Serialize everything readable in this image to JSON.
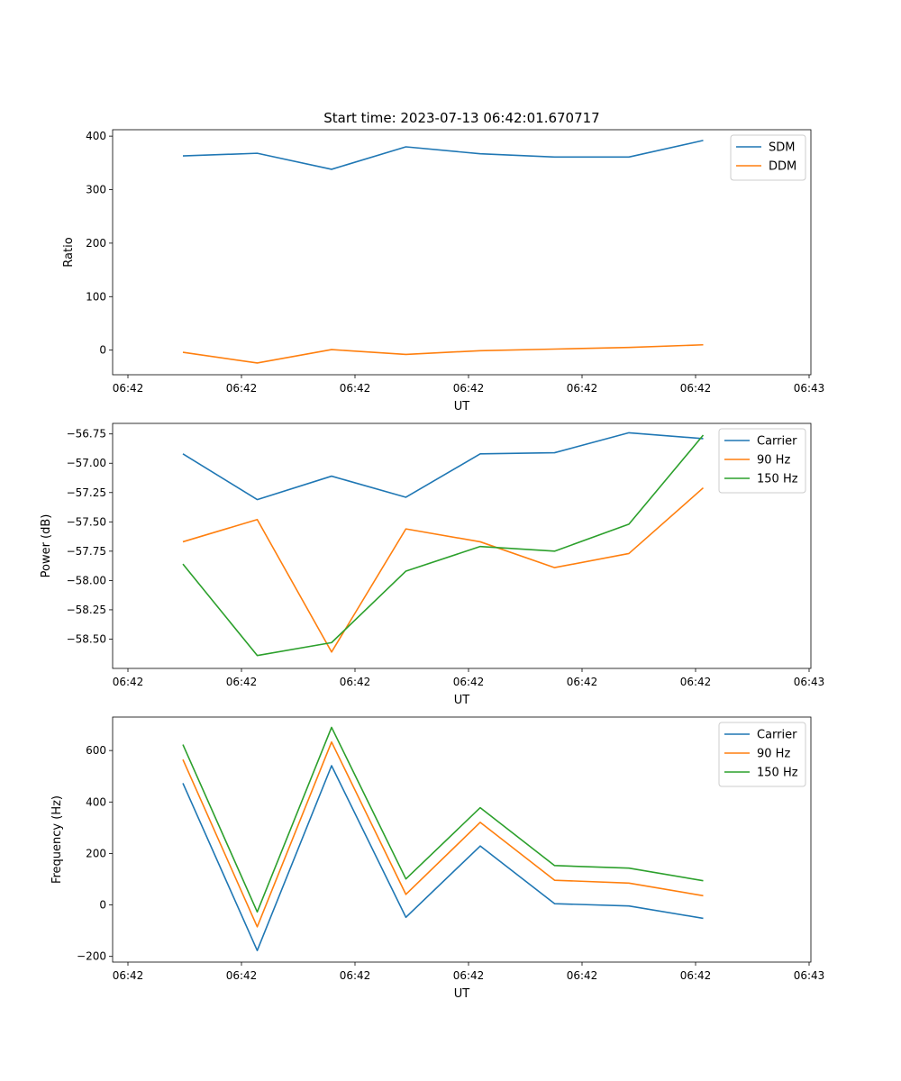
{
  "chart_data": [
    {
      "type": "line",
      "title": "Start time: 2023-07-13 06:42:01.670717",
      "xlabel": "UT",
      "ylabel": "Ratio",
      "ylim": [
        -46,
        412
      ],
      "yticks": [
        0,
        100,
        200,
        300,
        400
      ],
      "ytick_labels": [
        "0",
        "100",
        "200",
        "300",
        "400"
      ],
      "xtick_labels": [
        "06:42",
        "06:42",
        "06:42",
        "06:42",
        "06:42",
        "06:42",
        "06:42"
      ],
      "xtick_last_label": "06:43",
      "legend_position": "top-right",
      "series": [
        {
          "name": "SDM",
          "color": "#1f77b4",
          "values": [
            363,
            368,
            338,
            380,
            367,
            361,
            361,
            392
          ]
        },
        {
          "name": "DDM",
          "color": "#ff7f0e",
          "values": [
            -4,
            -24,
            1,
            -8,
            -1,
            2,
            5,
            10
          ]
        }
      ]
    },
    {
      "type": "line",
      "title": "",
      "xlabel": "UT",
      "ylabel": "Power (dB)",
      "ylim": [
        -58.75,
        -56.66
      ],
      "yticks": [
        -58.5,
        -58.25,
        -58.0,
        -57.75,
        -57.5,
        -57.25,
        -57.0,
        -56.75
      ],
      "ytick_labels": [
        "−58.50",
        "−58.25",
        "−58.00",
        "−57.75",
        "−57.50",
        "−57.25",
        "−57.00",
        "−56.75"
      ],
      "xtick_labels": [
        "06:42",
        "06:42",
        "06:42",
        "06:42",
        "06:42",
        "06:42",
        "06:42"
      ],
      "xtick_last_label": "06:43",
      "legend_position": "top-right",
      "series": [
        {
          "name": "Carrier",
          "color": "#1f77b4",
          "values": [
            -56.92,
            -57.31,
            -57.11,
            -57.29,
            -56.92,
            -56.91,
            -56.74,
            -56.79
          ]
        },
        {
          "name": "90 Hz",
          "color": "#ff7f0e",
          "values": [
            -57.67,
            -57.48,
            -58.61,
            -57.56,
            -57.67,
            -57.89,
            -57.77,
            -57.21
          ]
        },
        {
          "name": "150 Hz",
          "color": "#2ca02c",
          "values": [
            -57.86,
            -58.64,
            -58.53,
            -57.92,
            -57.71,
            -57.75,
            -57.52,
            -56.76
          ]
        }
      ]
    },
    {
      "type": "line",
      "title": "",
      "xlabel": "UT",
      "ylabel": "Frequency (Hz)",
      "ylim": [
        -222,
        730
      ],
      "yticks": [
        -200,
        0,
        200,
        400,
        600
      ],
      "ytick_labels": [
        "−200",
        "0",
        "200",
        "400",
        "600"
      ],
      "xtick_labels": [
        "06:42",
        "06:42",
        "06:42",
        "06:42",
        "06:42",
        "06:42",
        "06:42"
      ],
      "xtick_last_label": "06:43",
      "legend_position": "top-right",
      "series": [
        {
          "name": "Carrier",
          "color": "#1f77b4",
          "values": [
            473,
            -177,
            541,
            -48,
            229,
            5,
            -4,
            -52
          ]
        },
        {
          "name": "90 Hz",
          "color": "#ff7f0e",
          "values": [
            565,
            -85,
            633,
            41,
            321,
            96,
            85,
            36
          ]
        },
        {
          "name": "150 Hz",
          "color": "#2ca02c",
          "values": [
            623,
            -27,
            690,
            101,
            378,
            153,
            143,
            94
          ]
        }
      ]
    }
  ]
}
